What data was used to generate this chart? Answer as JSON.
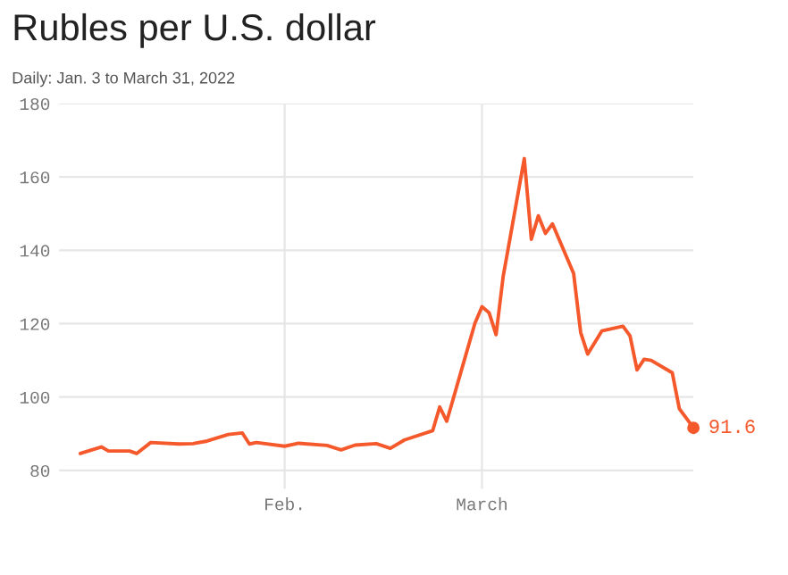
{
  "chart_data": {
    "type": "line",
    "title": "Rubles per U.S. dollar",
    "subtitle": "Daily: Jan. 3 to March 31, 2022",
    "x": [
      "2022-01-03",
      "2022-01-06",
      "2022-01-07",
      "2022-01-10",
      "2022-01-11",
      "2022-01-13",
      "2022-01-17",
      "2022-01-19",
      "2022-01-21",
      "2022-01-24",
      "2022-01-26",
      "2022-01-27",
      "2022-01-28",
      "2022-02-01",
      "2022-02-03",
      "2022-02-07",
      "2022-02-09",
      "2022-02-11",
      "2022-02-14",
      "2022-02-16",
      "2022-02-18",
      "2022-02-22",
      "2022-02-23",
      "2022-02-24",
      "2022-02-28",
      "2022-03-01",
      "2022-03-02",
      "2022-03-03",
      "2022-03-04",
      "2022-03-07",
      "2022-03-08",
      "2022-03-09",
      "2022-03-10",
      "2022-03-11",
      "2022-03-14",
      "2022-03-15",
      "2022-03-16",
      "2022-03-18",
      "2022-03-21",
      "2022-03-22",
      "2022-03-23",
      "2022-03-24",
      "2022-03-25",
      "2022-03-28",
      "2022-03-29",
      "2022-03-31"
    ],
    "series": [
      {
        "color": "#f5592b",
        "values": [
          84.6,
          86.4,
          85.3,
          85.3,
          84.6,
          87.6,
          87.2,
          87.3,
          88.0,
          89.8,
          90.2,
          87.2,
          87.6,
          86.6,
          87.4,
          86.8,
          85.6,
          86.9,
          87.3,
          86.0,
          88.3,
          90.8,
          97.3,
          93.4,
          120.1,
          124.6,
          123.0,
          117.0,
          132.8,
          165.0,
          143.0,
          149.4,
          144.6,
          147.2,
          133.7,
          117.6,
          111.7,
          118.0,
          119.3,
          116.7,
          107.4,
          110.3,
          110.0,
          106.6,
          96.8,
          91.6
        ],
        "value_labels": [
          null,
          null,
          null,
          null,
          null,
          null,
          null,
          null,
          null,
          null,
          null,
          null,
          null,
          null,
          null,
          null,
          null,
          null,
          null,
          null,
          null,
          null,
          null,
          null,
          null,
          null,
          null,
          null,
          null,
          null,
          null,
          null,
          null,
          null,
          null,
          null,
          null,
          null,
          null,
          null,
          null,
          null,
          null,
          null,
          null,
          "91.6"
        ]
      }
    ],
    "xlim": [
      "2021-12-31",
      "2022-03-31"
    ],
    "xticks": [
      {
        "value": "2022-02-01",
        "label": "Feb."
      },
      {
        "value": "2022-03-01",
        "label": "March"
      }
    ],
    "ylim": [
      75,
      180
    ],
    "yticks": [
      80,
      100,
      120,
      140,
      160,
      180
    ],
    "grid": true,
    "marker": "none",
    "line_style": "solid",
    "legend": false
  }
}
